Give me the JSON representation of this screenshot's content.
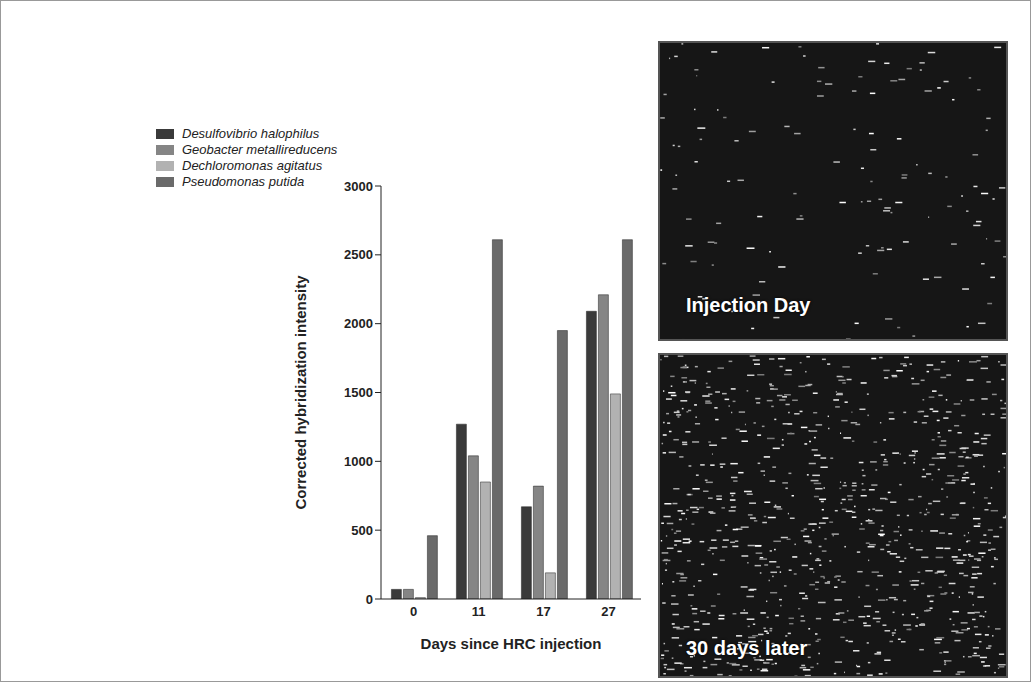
{
  "chart_data": {
    "type": "bar",
    "xlabel": "Days since HRC injection",
    "ylabel": "Corrected hybridization intensity",
    "categories": [
      "0",
      "11",
      "17",
      "27"
    ],
    "series": [
      {
        "name": "Desulfovibrio halophilus",
        "color": "#3a3a3a",
        "values": [
          70,
          1270,
          670,
          2090
        ]
      },
      {
        "name": "Geobacter metallireducens",
        "color": "#858585",
        "values": [
          70,
          1040,
          820,
          2210
        ]
      },
      {
        "name": "Dechloromonas agitatus",
        "color": "#b2b2b2",
        "values": [
          10,
          850,
          190,
          1490
        ]
      },
      {
        "name": "Pseudomonas putida",
        "color": "#6a6a6a",
        "values": [
          460,
          2610,
          1950,
          2610
        ]
      }
    ],
    "ylim": [
      0,
      3000
    ],
    "yticks": [
      0,
      500,
      1000,
      1500,
      2000,
      2500,
      3000
    ],
    "legend": "upper left"
  },
  "panels": [
    {
      "label": "Injection Day"
    },
    {
      "label": "30 days later"
    }
  ]
}
